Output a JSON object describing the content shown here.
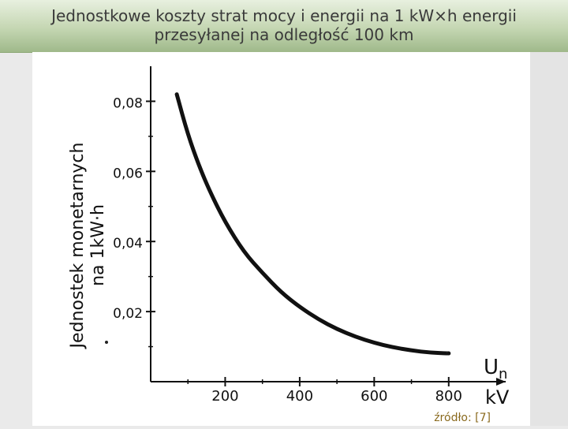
{
  "slide": {
    "title_line1": "Jednostkowe koszty strat mocy i energii na 1 kW×h energii",
    "title_line2": "przesyłanej na odległość 100 km",
    "source": "źródło: [7]"
  },
  "chart_data": {
    "type": "line",
    "x_unit_symbol": "Un",
    "x_unit_subscript": "n",
    "x_unit": "kV",
    "ylabel_line1": "Jednostek monetarnych",
    "ylabel_line2": "na 1kW·h",
    "xlim": [
      0,
      900
    ],
    "ylim": [
      0,
      0.09
    ],
    "x_ticks": [
      200,
      400,
      600,
      800
    ],
    "x_tick_labels": [
      "200",
      "400",
      "600",
      "800"
    ],
    "y_ticks": [
      0.02,
      0.04,
      0.06,
      0.08
    ],
    "y_tick_labels": [
      "0,02",
      "0,04",
      "0,06",
      "0,08"
    ],
    "grid": false,
    "series": [
      {
        "x": [
          70,
          100,
          130,
          160,
          200,
          250,
          300,
          350,
          400,
          450,
          500,
          550,
          600,
          650,
          700,
          750,
          800
        ],
        "y": [
          0.082,
          0.0705,
          0.0615,
          0.054,
          0.0455,
          0.037,
          0.031,
          0.0255,
          0.0213,
          0.0178,
          0.015,
          0.0128,
          0.0111,
          0.0098,
          0.0089,
          0.0083,
          0.0081
        ]
      }
    ]
  }
}
